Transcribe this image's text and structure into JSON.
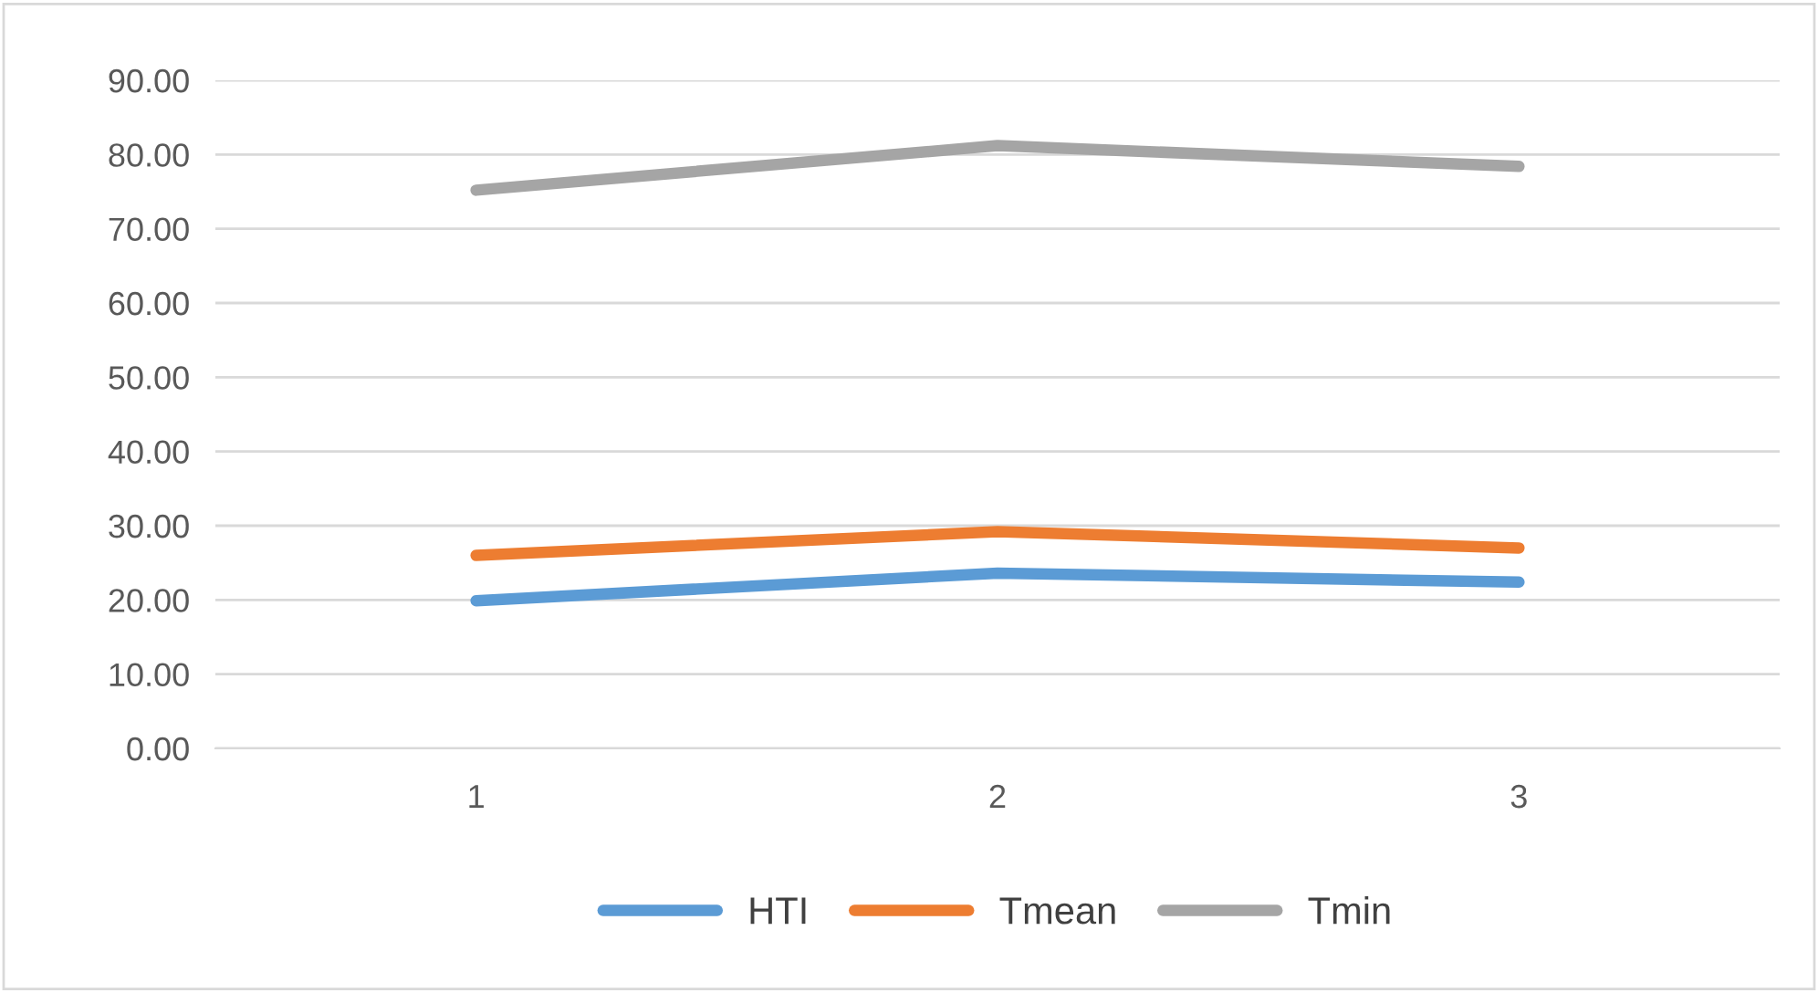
{
  "chart_data": {
    "type": "line",
    "categories": [
      "1",
      "2",
      "3"
    ],
    "series": [
      {
        "name": "HTI",
        "color": "#5b9bd5",
        "values": [
          19.9,
          23.6,
          22.4
        ]
      },
      {
        "name": "Tmean",
        "color": "#ed7d31",
        "values": [
          26.0,
          29.2,
          27.0
        ]
      },
      {
        "name": "Tmin",
        "color": "#a5a5a5",
        "values": [
          75.2,
          81.2,
          78.4
        ]
      }
    ],
    "ylim": [
      0,
      90
    ],
    "yticks": [
      {
        "value": 0,
        "label": "0.00"
      },
      {
        "value": 10,
        "label": "10.00"
      },
      {
        "value": 20,
        "label": "20.00"
      },
      {
        "value": 30,
        "label": "30.00"
      },
      {
        "value": 40,
        "label": "40.00"
      },
      {
        "value": 50,
        "label": "50.00"
      },
      {
        "value": 60,
        "label": "60.00"
      },
      {
        "value": 70,
        "label": "70.00"
      },
      {
        "value": 80,
        "label": "80.00"
      },
      {
        "value": 90,
        "label": "90.00"
      }
    ],
    "grid": "y",
    "legend": "bottom",
    "marker": "none",
    "line_style": "solid"
  }
}
